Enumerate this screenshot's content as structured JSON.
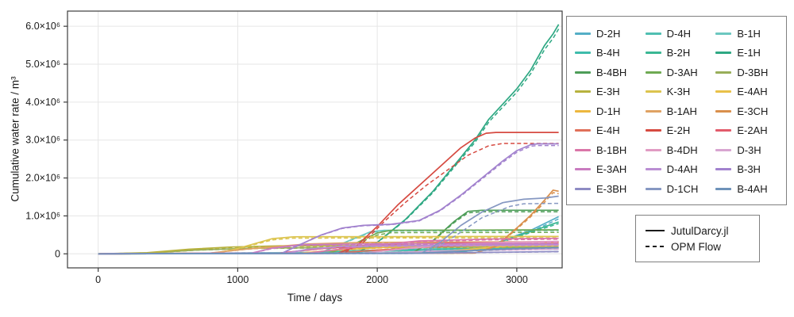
{
  "figure": {
    "xlabel": "Time / days",
    "ylabel": "Cumulative water rate / m³",
    "x_ticks": [
      0,
      1000,
      2000,
      3000
    ],
    "x_tick_labels": [
      "0",
      "1000",
      "2000",
      "3000"
    ],
    "y_ticks_1e6": [
      0,
      1,
      2,
      3,
      4,
      5,
      6
    ],
    "y_tick_labels": [
      "0",
      "1.0×10⁶",
      "2.0×10⁶",
      "3.0×10⁶",
      "4.0×10⁶",
      "5.0×10⁶",
      "6.0×10⁶"
    ]
  },
  "solver_legend": {
    "solid_label": "JutulDarcy.jl",
    "dashed_label": "OPM Flow"
  },
  "chart_data": {
    "type": "line",
    "title": "",
    "xlabel": "Time / days",
    "ylabel": "Cumulative water rate / m³",
    "x_unit": "days",
    "y_values_in": "1e6 m³",
    "xlim": [
      -220,
      3325
    ],
    "ylim_1e6": [
      -0.37,
      6.4
    ],
    "grid": true,
    "legend_position": "right-outside",
    "line_style_groups": [
      {
        "name": "JutulDarcy.jl",
        "style": "solid"
      },
      {
        "name": "OPM Flow",
        "style": "dashed"
      }
    ],
    "style": {
      "background": "#ffffff",
      "spine_color": "#3c3c3c",
      "grid_color": "#e6e6e6",
      "text_color": "#1a1a1a",
      "legend_border_color": "#808080"
    },
    "series": [
      {
        "name": "D-2H",
        "color": "#54aec6",
        "opm_scale": 0.94,
        "points_1e6": [
          [
            0,
            0
          ],
          [
            2550,
            0.02
          ],
          [
            2700,
            0.1
          ],
          [
            2900,
            0.35
          ],
          [
            3100,
            0.62
          ],
          [
            3300,
            0.98
          ]
        ]
      },
      {
        "name": "D-4H",
        "color": "#50bfb2",
        "opm_scale": 0.95,
        "points_1e6": [
          [
            0,
            0
          ],
          [
            1500,
            0.02
          ],
          [
            2000,
            0.07
          ],
          [
            2600,
            0.1
          ],
          [
            3300,
            0.13
          ]
        ]
      },
      {
        "name": "B-1H",
        "color": "#6cc7c0",
        "opm_scale": 0.97,
        "points_1e6": [
          [
            0,
            0
          ],
          [
            1600,
            0.04
          ],
          [
            1800,
            0.35
          ],
          [
            1950,
            0.58
          ],
          [
            2050,
            0.62
          ],
          [
            3300,
            0.63
          ]
        ]
      },
      {
        "name": "B-4H",
        "color": "#3ebcab",
        "opm_scale": 0.95,
        "points_1e6": [
          [
            0,
            0
          ],
          [
            1400,
            0.02
          ],
          [
            1900,
            0.09
          ],
          [
            2400,
            0.13
          ],
          [
            3300,
            0.16
          ]
        ]
      },
      {
        "name": "B-2H",
        "color": "#3ab794",
        "opm_scale": 0.95,
        "points_1e6": [
          [
            0,
            0
          ],
          [
            2550,
            0.02
          ],
          [
            2750,
            0.15
          ],
          [
            2950,
            0.4
          ],
          [
            3150,
            0.65
          ],
          [
            3300,
            0.84
          ]
        ]
      },
      {
        "name": "E-1H",
        "color": "#2ea883",
        "opm_scale": 0.98,
        "points_1e6": [
          [
            0,
            0
          ],
          [
            1850,
            0.02
          ],
          [
            2000,
            0.3
          ],
          [
            2200,
            0.9
          ],
          [
            2400,
            1.65
          ],
          [
            2600,
            2.55
          ],
          [
            2700,
            3.0
          ],
          [
            2800,
            3.55
          ],
          [
            2900,
            3.95
          ],
          [
            3000,
            4.35
          ],
          [
            3100,
            4.85
          ],
          [
            3200,
            5.5
          ],
          [
            3260,
            5.8
          ],
          [
            3300,
            6.05
          ]
        ]
      },
      {
        "name": "B-4BH",
        "color": "#4d9d58",
        "opm_scale": 0.965,
        "points_1e6": [
          [
            0,
            0
          ],
          [
            2250,
            0.02
          ],
          [
            2400,
            0.35
          ],
          [
            2550,
            0.85
          ],
          [
            2650,
            1.12
          ],
          [
            2750,
            1.15
          ],
          [
            3300,
            1.15
          ]
        ]
      },
      {
        "name": "D-3AH",
        "color": "#6faa52",
        "opm_scale": 0.9,
        "points_1e6": [
          [
            0,
            0
          ],
          [
            1650,
            0.02
          ],
          [
            1800,
            0.2
          ],
          [
            2000,
            0.55
          ],
          [
            2100,
            0.62
          ],
          [
            3300,
            0.63
          ]
        ]
      },
      {
        "name": "D-3BH",
        "color": "#98ae59",
        "opm_scale": 0.93,
        "points_1e6": [
          [
            0,
            0
          ],
          [
            350,
            0.02
          ],
          [
            700,
            0.1
          ],
          [
            1100,
            0.15
          ],
          [
            1800,
            0.17
          ],
          [
            3300,
            0.18
          ]
        ]
      },
      {
        "name": "E-3H",
        "color": "#b7b23e",
        "opm_scale": 0.93,
        "points_1e6": [
          [
            0,
            0
          ],
          [
            350,
            0.03
          ],
          [
            650,
            0.12
          ],
          [
            950,
            0.18
          ],
          [
            1300,
            0.21
          ],
          [
            3300,
            0.23
          ]
        ]
      },
      {
        "name": "K-3H",
        "color": "#dcc44e",
        "opm_scale": 0.92,
        "points_1e6": [
          [
            0,
            0
          ],
          [
            850,
            0.02
          ],
          [
            1000,
            0.14
          ],
          [
            1250,
            0.4
          ],
          [
            1400,
            0.45
          ],
          [
            3300,
            0.46
          ]
        ]
      },
      {
        "name": "E-4AH",
        "color": "#e9c149",
        "opm_scale": 0.94,
        "points_1e6": [
          [
            0,
            0
          ],
          [
            2300,
            0.02
          ],
          [
            2600,
            0.1
          ],
          [
            2900,
            0.2
          ],
          [
            3200,
            0.28
          ],
          [
            3300,
            0.3
          ]
        ]
      },
      {
        "name": "D-1H",
        "color": "#ecb73e",
        "opm_scale": 0.94,
        "points_1e6": [
          [
            0,
            0
          ],
          [
            1450,
            0.02
          ],
          [
            1700,
            0.1
          ],
          [
            2100,
            0.18
          ],
          [
            2600,
            0.21
          ],
          [
            3300,
            0.22
          ]
        ]
      },
      {
        "name": "B-1AH",
        "color": "#dfa263",
        "opm_scale": 0.95,
        "points_1e6": [
          [
            0,
            0
          ],
          [
            800,
            0.02
          ],
          [
            1050,
            0.12
          ],
          [
            1500,
            0.26
          ],
          [
            1900,
            0.3
          ],
          [
            3300,
            0.32
          ]
        ]
      },
      {
        "name": "E-3CH",
        "color": "#d98f4c",
        "opm_scale": 0.96,
        "points_1e6": [
          [
            0,
            0
          ],
          [
            2700,
            0.02
          ],
          [
            2850,
            0.2
          ],
          [
            3000,
            0.68
          ],
          [
            3100,
            1.02
          ],
          [
            3200,
            1.42
          ],
          [
            3260,
            1.68
          ],
          [
            3300,
            1.65
          ]
        ]
      },
      {
        "name": "E-4H",
        "color": "#e0705a",
        "opm_scale": 0.94,
        "points_1e6": [
          [
            0,
            0
          ],
          [
            1700,
            0.02
          ],
          [
            2000,
            0.1
          ],
          [
            2400,
            0.19
          ],
          [
            2800,
            0.24
          ],
          [
            3300,
            0.27
          ]
        ]
      },
      {
        "name": "E-2H",
        "color": "#d64a41",
        "points_1e6": [
          [
            0,
            0
          ],
          [
            1720,
            0.02
          ],
          [
            1850,
            0.2
          ],
          [
            2000,
            0.72
          ],
          [
            2150,
            1.3
          ],
          [
            2300,
            1.8
          ],
          [
            2450,
            2.3
          ],
          [
            2600,
            2.8
          ],
          [
            2700,
            3.05
          ],
          [
            2780,
            3.18
          ],
          [
            2850,
            3.2
          ],
          [
            3300,
            3.2
          ]
        ],
        "opm_points_1e6": [
          [
            0,
            0
          ],
          [
            1760,
            0.02
          ],
          [
            1900,
            0.3
          ],
          [
            2050,
            0.85
          ],
          [
            2200,
            1.35
          ],
          [
            2350,
            1.8
          ],
          [
            2500,
            2.2
          ],
          [
            2650,
            2.6
          ],
          [
            2800,
            2.85
          ],
          [
            2900,
            2.91
          ],
          [
            3300,
            2.91
          ]
        ]
      },
      {
        "name": "E-2AH",
        "color": "#e25b6b",
        "opm_scale": 0.94,
        "points_1e6": [
          [
            0,
            0
          ],
          [
            1300,
            0.02
          ],
          [
            1600,
            0.14
          ],
          [
            2000,
            0.24
          ],
          [
            2600,
            0.29
          ],
          [
            3300,
            0.32
          ]
        ]
      },
      {
        "name": "B-1BH",
        "color": "#da76a8",
        "opm_scale": 0.94,
        "points_1e6": [
          [
            0,
            0
          ],
          [
            1500,
            0.02
          ],
          [
            1900,
            0.2
          ],
          [
            2300,
            0.34
          ],
          [
            2800,
            0.39
          ],
          [
            3300,
            0.41
          ]
        ]
      },
      {
        "name": "B-4DH",
        "color": "#e19bc3",
        "opm_scale": 0.94,
        "points_1e6": [
          [
            0,
            0
          ],
          [
            1900,
            0.02
          ],
          [
            2200,
            0.14
          ],
          [
            2600,
            0.27
          ],
          [
            3000,
            0.31
          ],
          [
            3300,
            0.33
          ]
        ]
      },
      {
        "name": "D-3H",
        "color": "#d8a5d1",
        "opm_scale": 0.93,
        "points_1e6": [
          [
            0,
            0
          ],
          [
            2000,
            0.02
          ],
          [
            2400,
            0.07
          ],
          [
            3000,
            0.11
          ],
          [
            3300,
            0.13
          ]
        ]
      },
      {
        "name": "E-3AH",
        "color": "#c97bc0",
        "opm_scale": 0.93,
        "points_1e6": [
          [
            0,
            0
          ],
          [
            1100,
            0.02
          ],
          [
            1250,
            0.15
          ],
          [
            1450,
            0.24
          ],
          [
            1900,
            0.26
          ],
          [
            3300,
            0.27
          ]
        ]
      },
      {
        "name": "D-4AH",
        "color": "#ba8ed3",
        "opm_scale": 0.94,
        "points_1e6": [
          [
            0,
            0
          ],
          [
            1350,
            0.02
          ],
          [
            1500,
            0.12
          ],
          [
            1750,
            0.2
          ],
          [
            2400,
            0.22
          ],
          [
            3300,
            0.24
          ]
        ]
      },
      {
        "name": "B-3H",
        "color": "#a282ce",
        "opm_scale": 0.985,
        "points_1e6": [
          [
            0,
            0
          ],
          [
            1320,
            0.02
          ],
          [
            1450,
            0.25
          ],
          [
            1600,
            0.5
          ],
          [
            1750,
            0.68
          ],
          [
            1900,
            0.75
          ],
          [
            2100,
            0.78
          ],
          [
            2300,
            0.88
          ],
          [
            2450,
            1.15
          ],
          [
            2600,
            1.55
          ],
          [
            2750,
            2.0
          ],
          [
            2900,
            2.45
          ],
          [
            3000,
            2.72
          ],
          [
            3100,
            2.88
          ],
          [
            3150,
            2.9
          ],
          [
            3300,
            2.9
          ]
        ]
      },
      {
        "name": "E-3BH",
        "color": "#8e8bc3",
        "opm_scale": 0.9,
        "points_1e6": [
          [
            0,
            0
          ],
          [
            2200,
            0.01
          ],
          [
            2800,
            0.04
          ],
          [
            3300,
            0.06
          ]
        ]
      },
      {
        "name": "D-1CH",
        "color": "#8698c2",
        "points_1e6": [
          [
            0,
            0
          ],
          [
            2320,
            0.02
          ],
          [
            2450,
            0.3
          ],
          [
            2600,
            0.75
          ],
          [
            2750,
            1.1
          ],
          [
            2900,
            1.35
          ],
          [
            3050,
            1.44
          ],
          [
            3200,
            1.47
          ],
          [
            3300,
            1.52
          ]
        ],
        "opm_points_1e6": [
          [
            0,
            0
          ],
          [
            2350,
            0.02
          ],
          [
            2550,
            0.45
          ],
          [
            2750,
            0.95
          ],
          [
            2950,
            1.25
          ],
          [
            3050,
            1.32
          ],
          [
            3300,
            1.33
          ]
        ]
      },
      {
        "name": "B-4AH",
        "color": "#6e92b9",
        "opm_scale": 0.93,
        "points_1e6": [
          [
            0,
            0
          ],
          [
            2300,
            0.02
          ],
          [
            2700,
            0.09
          ],
          [
            3000,
            0.14
          ],
          [
            3300,
            0.17
          ]
        ]
      }
    ]
  }
}
